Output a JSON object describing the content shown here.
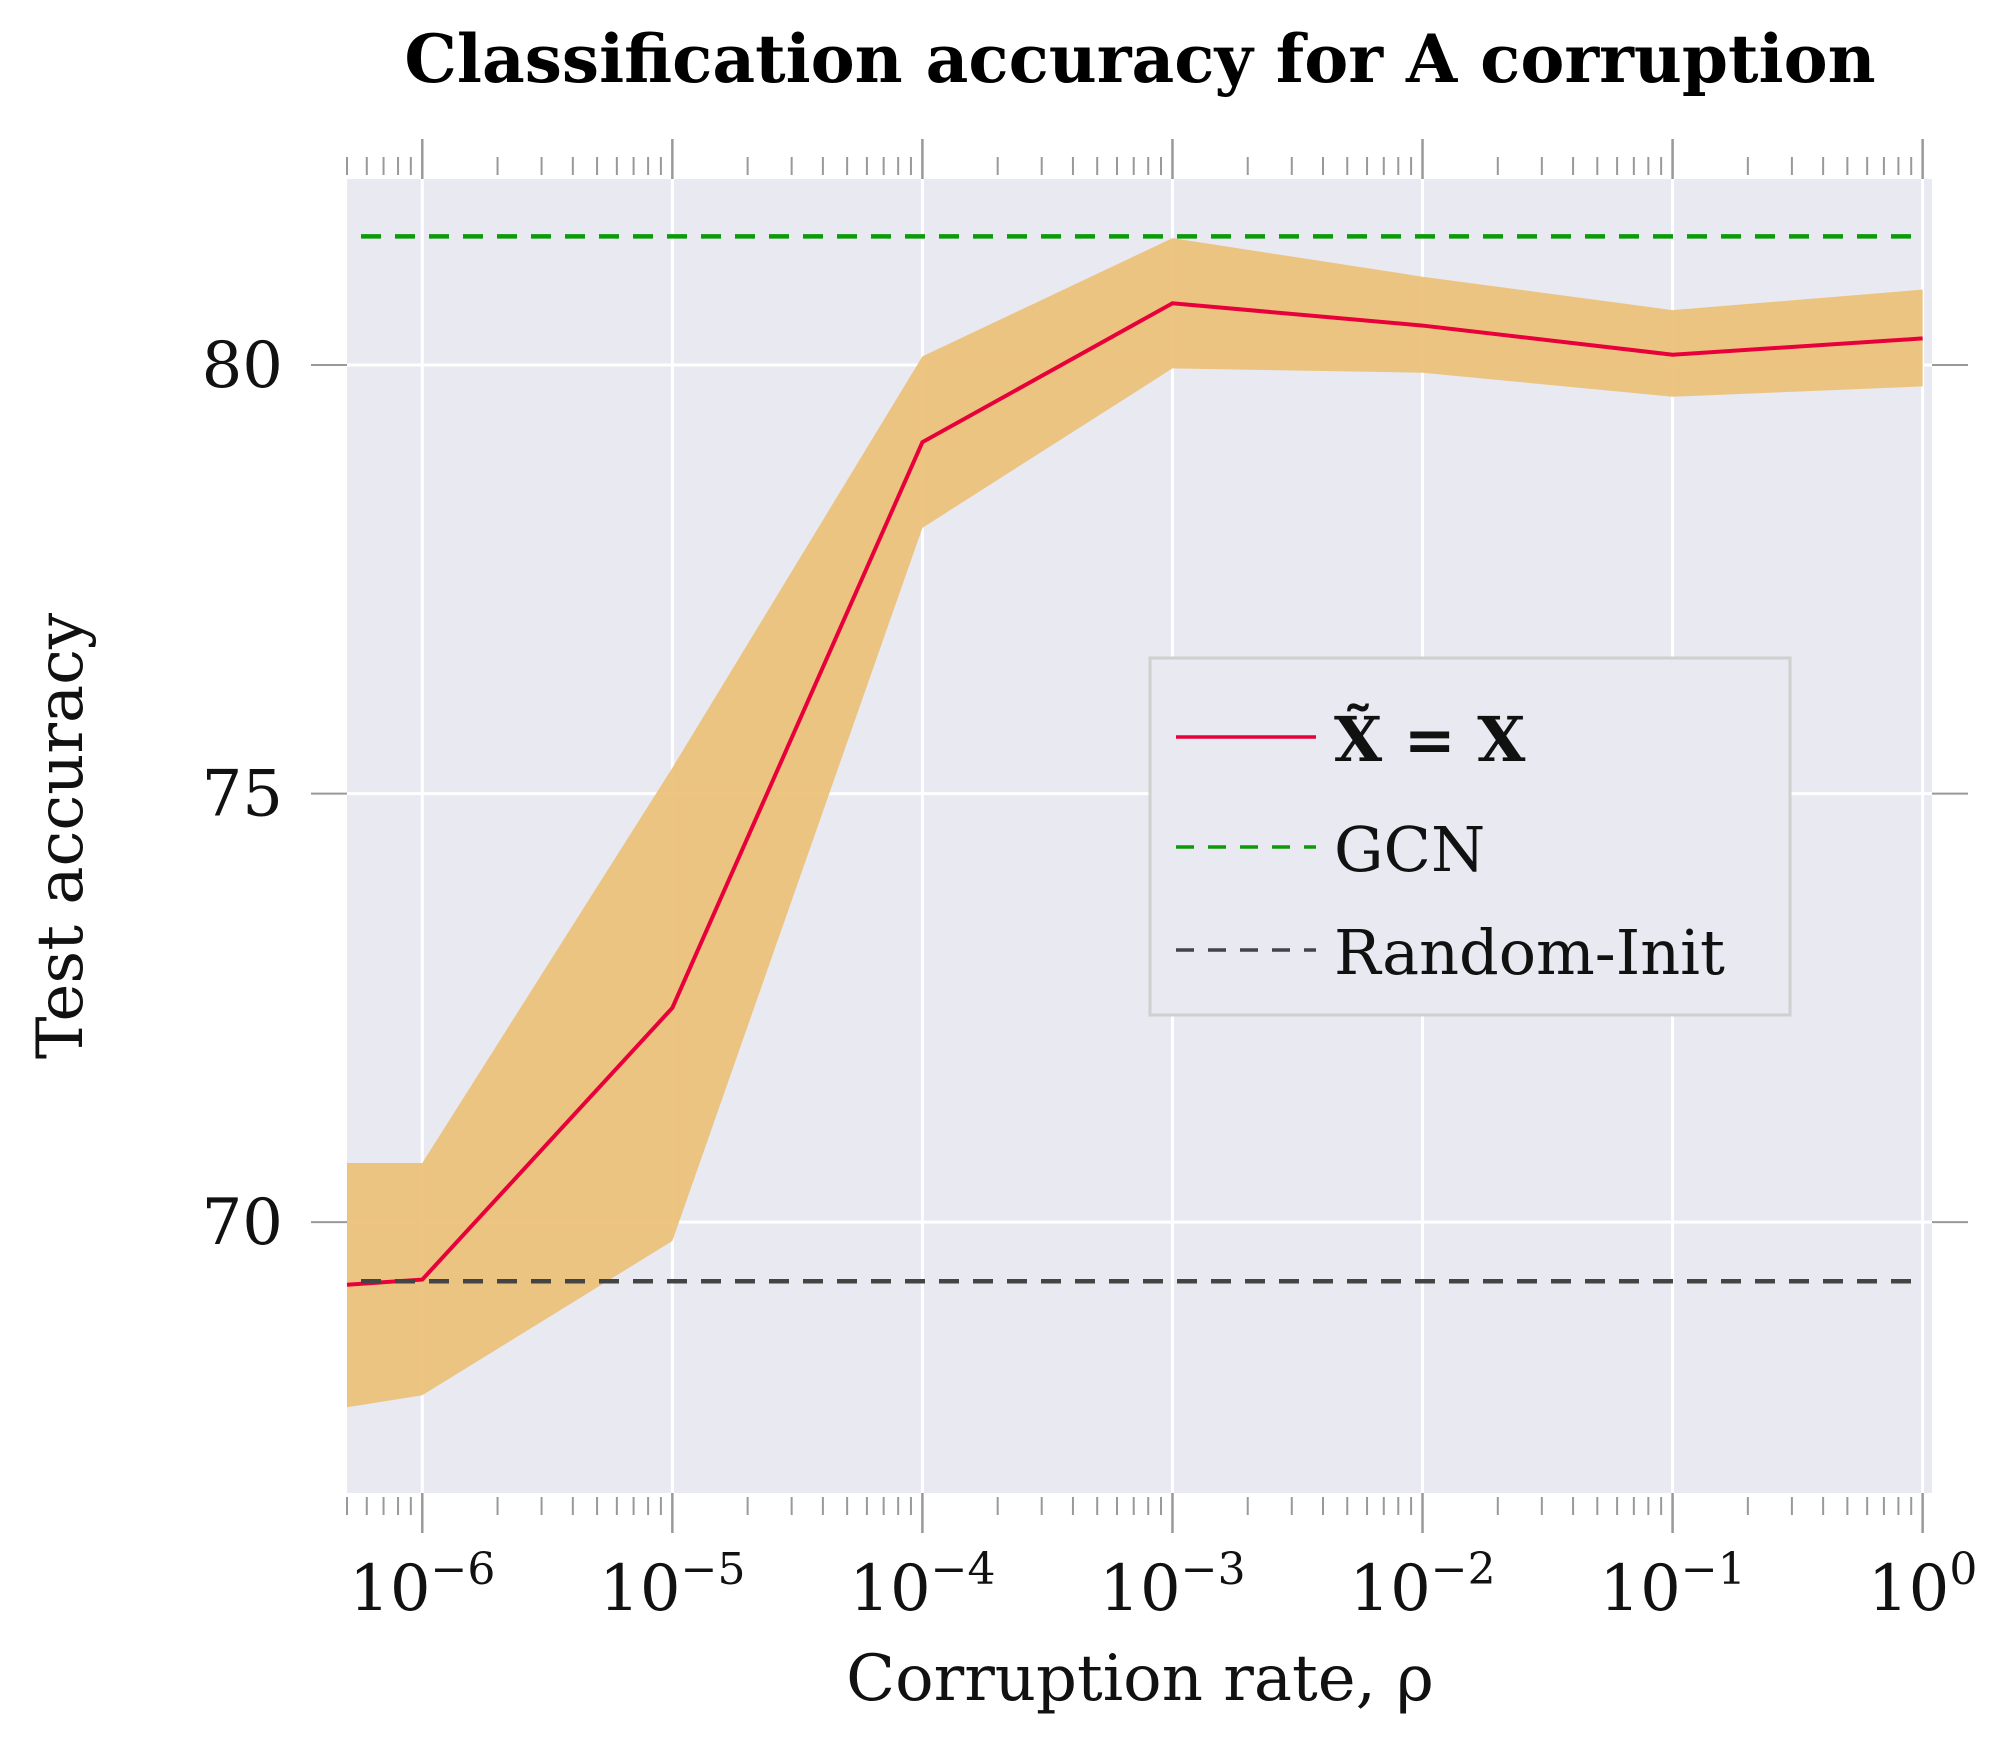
{
  "chart_data": {
    "type": "line",
    "title": "Classification accuracy for A corruption",
    "xlabel": "Corruption rate, ρ",
    "ylabel": "Test accuracy",
    "xscale": "log",
    "xlim": [
      5e-07,
      1.09
    ],
    "ylim": [
      66.84,
      82.17
    ],
    "grid": true,
    "background_color": "#e8e9f1",
    "x_ticks": [
      1e-06,
      1e-05,
      0.0001,
      0.001,
      0.01,
      0.1,
      1
    ],
    "x_tick_labels": [
      {
        "base": "10",
        "exp": "−6"
      },
      {
        "base": "10",
        "exp": "−5"
      },
      {
        "base": "10",
        "exp": "−4"
      },
      {
        "base": "10",
        "exp": "−3"
      },
      {
        "base": "10",
        "exp": "−2"
      },
      {
        "base": "10",
        "exp": "−1"
      },
      {
        "base": "10",
        "exp": "0"
      }
    ],
    "y_ticks": [
      70,
      75,
      80
    ],
    "y_tick_labels": [
      "70",
      "75",
      "80"
    ],
    "legend_position": "center-right",
    "series": [
      {
        "name": "X̃ = X",
        "style": "solid",
        "color": "#e8003a",
        "x": [
          5e-07,
          1e-06,
          1e-05,
          0.0001,
          0.001,
          0.01,
          0.1,
          1
        ],
        "y": [
          69.27,
          69.33,
          72.5,
          79.1,
          80.72,
          80.46,
          80.12,
          80.31
        ],
        "band_color": "#ecc27a",
        "band_upper": [
          70.69,
          70.69,
          75.3,
          80.1,
          81.48,
          81.03,
          80.64,
          80.88
        ],
        "band_lower": [
          67.84,
          67.98,
          69.78,
          78.1,
          79.96,
          79.91,
          79.63,
          79.75
        ]
      },
      {
        "name": "GCN",
        "style": "dashed",
        "color": "#0a9a0a",
        "hline": 81.5
      },
      {
        "name": "Random-Init",
        "style": "dashed",
        "color": "#444444",
        "hline": 69.31
      }
    ]
  }
}
